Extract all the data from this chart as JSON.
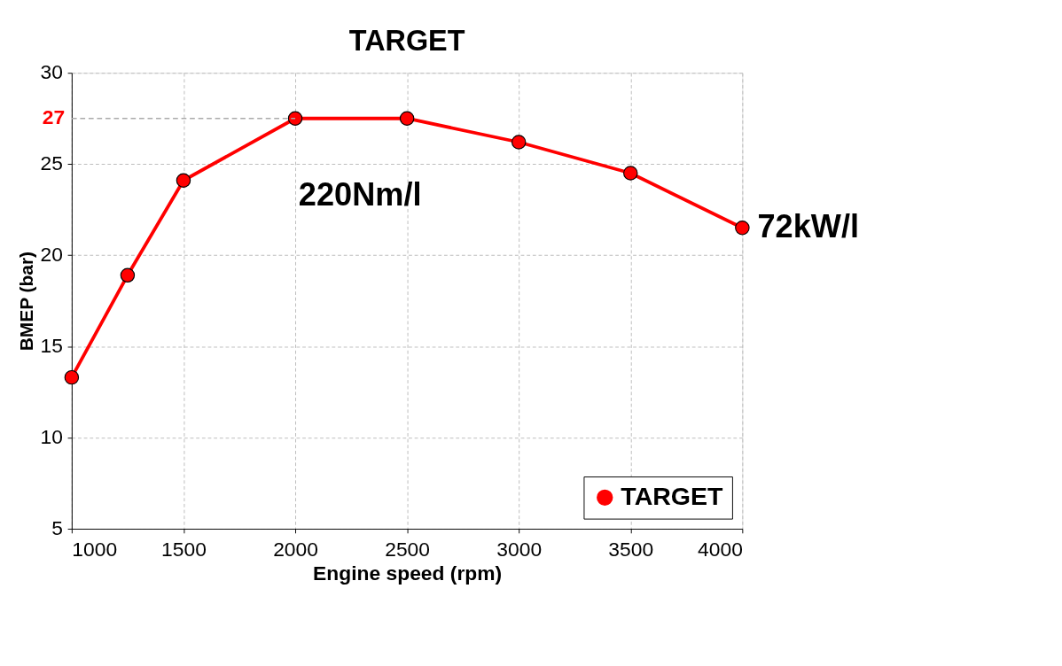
{
  "chart_data": {
    "type": "line",
    "title": "TARGET",
    "xlabel": "Engine speed (rpm)",
    "ylabel": "BMEP (bar)",
    "x": [
      1000,
      1250,
      1500,
      2000,
      2500,
      3000,
      3500,
      4000
    ],
    "series": [
      {
        "name": "TARGET",
        "color": "#ff0000",
        "values": [
          13.3,
          18.9,
          24.1,
          27.5,
          27.5,
          26.2,
          24.5,
          21.5
        ]
      }
    ],
    "xlim": [
      1000,
      4000
    ],
    "xticks": [
      1000,
      1500,
      2000,
      2500,
      3000,
      3500,
      4000
    ],
    "ylim": [
      5,
      30
    ],
    "yticks": [
      5,
      10,
      15,
      20,
      25,
      30
    ],
    "ref_lines": [
      {
        "axis": "y",
        "value": 27.5,
        "label": "27",
        "color": "#aaaaaa",
        "line_style": "dashed"
      }
    ],
    "annotations": [
      "220Nm/l",
      {
        "text": "72kW/l",
        "x": 4000,
        "y": 21.5
      }
    ],
    "grid": true,
    "legend": "bottom right",
    "marker": "circle",
    "line_style": "solid"
  }
}
